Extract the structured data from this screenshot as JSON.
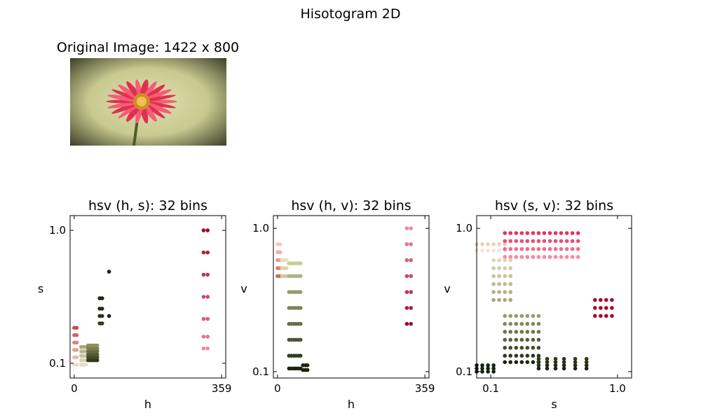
{
  "figure_title": "Hisotogram 2D",
  "image_title": "Original Image: 1422 x 800",
  "image_content": "red gerbera daisy on blurred olive green background",
  "chart_data": [
    {
      "type": "scatter",
      "title": "hsv (h, s): 32 bins",
      "xlabel": "h",
      "ylabel": "s",
      "x_ticks": [
        "0",
        "359"
      ],
      "y_ticks": [
        "0.1",
        "1.0"
      ],
      "xlim": [
        -10,
        369
      ],
      "ylim": [
        0.0,
        1.1
      ],
      "grid": false,
      "groups": [
        {
          "hues": [
            0,
            6
          ],
          "y_values": [
            0.09,
            0.14,
            0.19,
            0.24,
            0.29,
            0.34
          ],
          "color_low": "#f0d8cc",
          "color_high": "#c84848"
        },
        {
          "hues": [
            17,
            22,
            28
          ],
          "y_values": [
            0.09,
            0.12,
            0.15,
            0.18,
            0.21
          ],
          "color_low": "#e8dcc4",
          "color_high": "#a8a878"
        },
        {
          "hues": [
            34,
            40,
            45,
            51,
            56
          ],
          "y_values": [
            0.12,
            0.14,
            0.16,
            0.18,
            0.2,
            0.22
          ],
          "color_low": "#2e3a1c",
          "color_high": "#8a9058"
        },
        {
          "hues": [
            62,
            68
          ],
          "y_values": [
            0.37,
            0.42,
            0.47,
            0.54
          ],
          "color_low": "#2e3a1c",
          "color_high": "#1a2410"
        },
        {
          "hues": [
            85
          ],
          "y_values": [
            0.42,
            0.72
          ],
          "color_low": "#1a2410",
          "color_high": "#1a2410"
        },
        {
          "hues": [
            315,
            325
          ],
          "y_values": [
            0.2,
            0.28,
            0.4,
            0.55,
            0.7,
            0.85,
            1.0
          ],
          "color_low": "#f08aa0",
          "color_high": "#a00c2c"
        }
      ]
    },
    {
      "type": "scatter",
      "title": "hsv (h, v): 32 bins",
      "xlabel": "h",
      "ylabel": "v",
      "x_ticks": [
        "0",
        "359"
      ],
      "y_ticks": [
        "0.1",
        "1.0"
      ],
      "xlim": [
        -10,
        369
      ],
      "ylim": [
        0.06,
        1.08
      ],
      "grid": false,
      "groups": [
        {
          "hues": [
            0,
            6
          ],
          "y_values": [
            0.7,
            0.75,
            0.8,
            0.85,
            0.9
          ],
          "color_low": "#c86a62",
          "color_high": "#f4c8c0"
        },
        {
          "hues": [
            11,
            17,
            22
          ],
          "y_values": [
            0.7,
            0.75,
            0.8
          ],
          "color_low": "#d8c8a0",
          "color_high": "#e8e0c0"
        },
        {
          "hues": [
            28,
            34,
            40,
            45,
            51,
            56
          ],
          "y_values": [
            0.12,
            0.2,
            0.3,
            0.4,
            0.5,
            0.6,
            0.7,
            0.78
          ],
          "color_low": "#1a2410",
          "color_high": "#c8cc98"
        },
        {
          "hues": [
            62,
            68,
            73
          ],
          "y_values": [
            0.11,
            0.14
          ],
          "color_low": "#1a2410",
          "color_high": "#1a2410"
        },
        {
          "hues": [
            315,
            325
          ],
          "y_values": [
            0.4,
            0.5,
            0.6,
            0.7,
            0.8,
            0.9,
            1.0
          ],
          "color_low": "#a00c2c",
          "color_high": "#f08aa0"
        }
      ]
    },
    {
      "type": "scatter",
      "title": "hsv (s, v): 32 bins",
      "xlabel": "s",
      "ylabel": "v",
      "x_ticks": [
        "0.1",
        "1.0"
      ],
      "y_ticks": [
        "0.1",
        "1.0"
      ],
      "xlim": [
        0.0,
        1.1
      ],
      "ylim": [
        0.06,
        1.08
      ],
      "grid": false,
      "groups": [
        {
          "s_values": [
            0.0,
            0.04,
            0.08,
            0.12,
            0.16,
            0.2
          ],
          "v_values": [
            0.86,
            0.9
          ],
          "color_low": "#f0e4d8",
          "color_high": "#e8d0c0"
        },
        {
          "s_values": [
            0.2,
            0.24,
            0.28,
            0.32,
            0.36,
            0.4,
            0.44,
            0.48,
            0.52,
            0.56,
            0.6,
            0.64,
            0.68,
            0.72
          ],
          "v_values": [
            0.82,
            0.87,
            0.92,
            0.97
          ],
          "color_low": "#f48aa0",
          "color_high": "#e83060"
        },
        {
          "s_values": [
            0.84,
            0.88,
            0.92,
            0.96
          ],
          "v_values": [
            0.45,
            0.5,
            0.55
          ],
          "color_low": "#a00c2c",
          "color_high": "#a00c2c"
        },
        {
          "s_values": [
            0.12,
            0.16,
            0.2,
            0.24
          ],
          "v_values": [
            0.55,
            0.6,
            0.65,
            0.7,
            0.75,
            0.8
          ],
          "color_low": "#a8a878",
          "color_high": "#d8d8b0"
        },
        {
          "s_values": [
            0.2,
            0.24,
            0.28,
            0.32,
            0.36,
            0.4,
            0.44
          ],
          "v_values": [
            0.16,
            0.2,
            0.25,
            0.3,
            0.35,
            0.4,
            0.45
          ],
          "color_low": "#1a2410",
          "color_high": "#9a9a68"
        },
        {
          "s_values": [
            0.0,
            0.04,
            0.08,
            0.12
          ],
          "v_values": [
            0.1,
            0.12,
            0.14
          ],
          "color_low": "#1a2410",
          "color_high": "#1a2410"
        },
        {
          "s_values": [
            0.44,
            0.5,
            0.56,
            0.62,
            0.7,
            0.78
          ],
          "v_values": [
            0.12,
            0.14,
            0.16,
            0.18
          ],
          "color_low": "#1a2410",
          "color_high": "#2e3a1c"
        }
      ]
    }
  ]
}
